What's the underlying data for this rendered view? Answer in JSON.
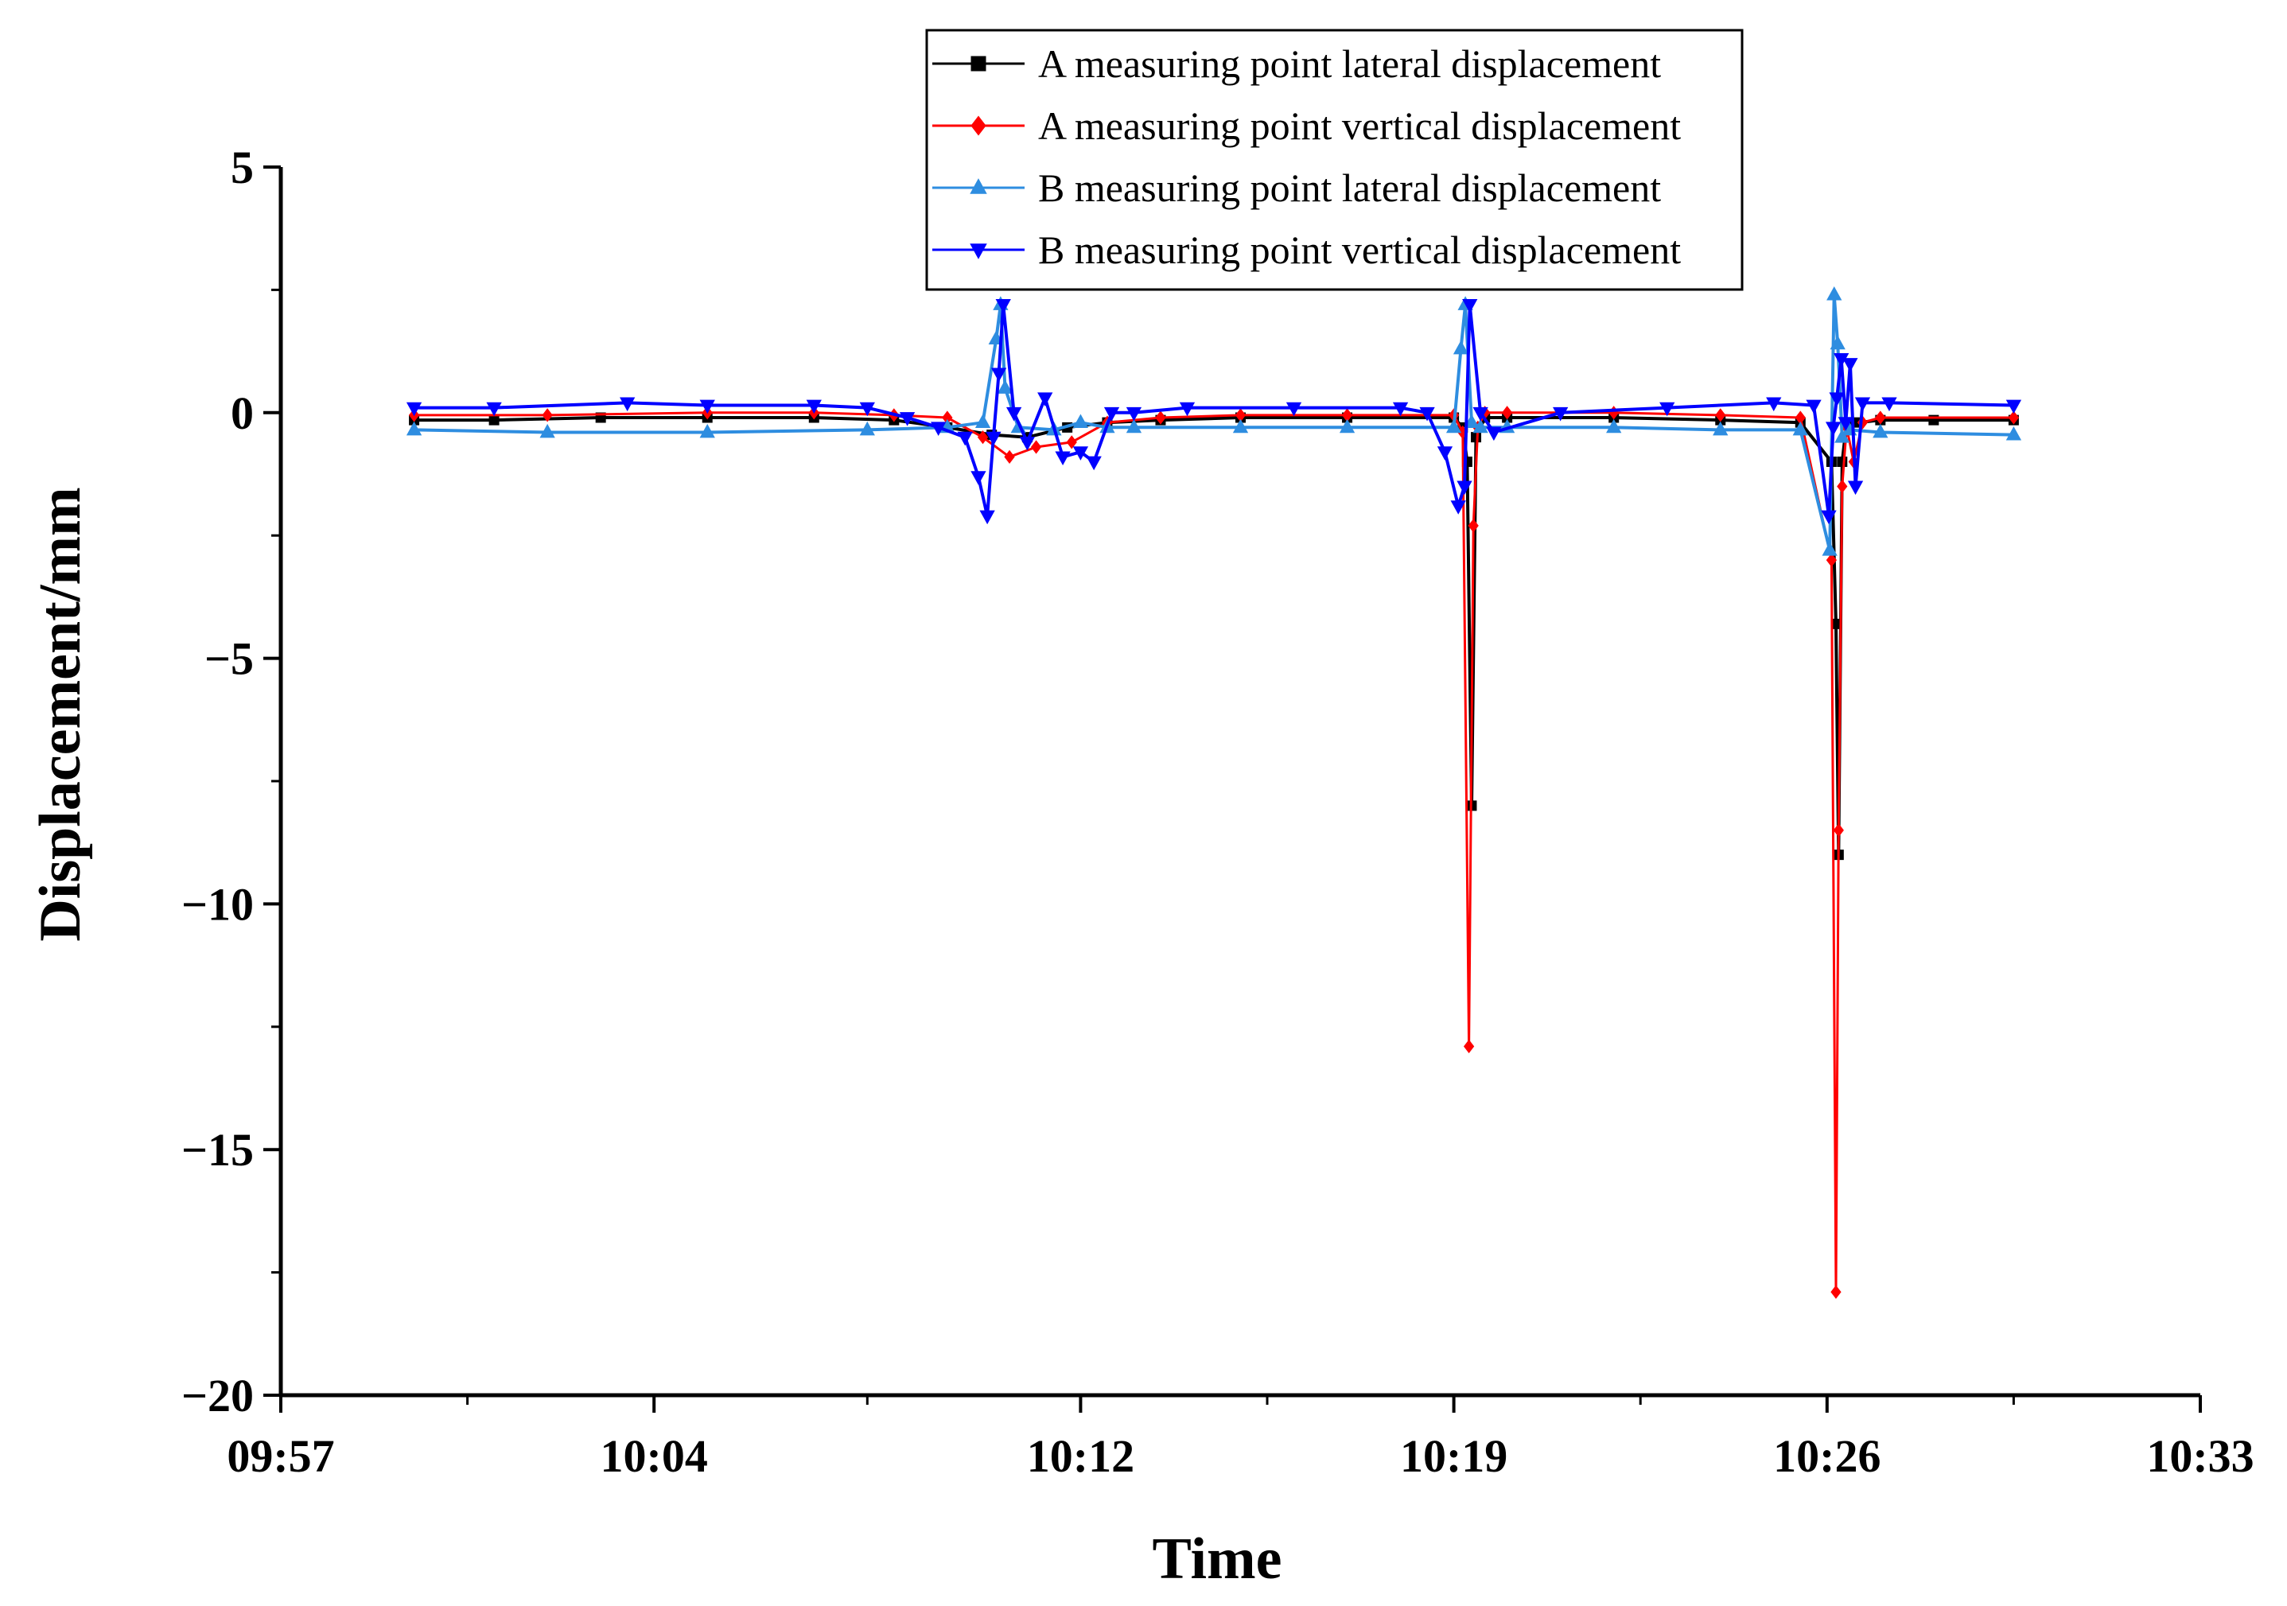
{
  "chart_data": {
    "type": "line",
    "title": "",
    "xlabel": "Time",
    "ylabel": "Displacement/mm",
    "xlim": [
      "09:57",
      "10:33"
    ],
    "ylim": [
      -20,
      5
    ],
    "x_ticks": [
      "09:57",
      "10:04",
      "10:12",
      "10:19",
      "10:26",
      "10:33"
    ],
    "y_ticks": [
      "5",
      "0",
      "−5",
      "−10",
      "−15",
      "−20"
    ],
    "y_tick_values": [
      5,
      0,
      -5,
      -10,
      -15,
      -20
    ],
    "grid": false,
    "legend_position": "top-right",
    "series": [
      {
        "name": "A measuring point lateral displacement",
        "color": "#000000",
        "marker": "square",
        "x": [
          "09:59:30",
          "10:01:00",
          "10:03:00",
          "10:05:00",
          "10:07:00",
          "10:08:30",
          "10:09:30",
          "10:10:20",
          "10:11:00",
          "10:11:45",
          "10:12:30",
          "10:13:30",
          "10:15:00",
          "10:17:00",
          "10:19:00",
          "10:19:10",
          "10:19:15",
          "10:19:20",
          "10:19:25",
          "10:19:35",
          "10:20:00",
          "10:22:00",
          "10:24:00",
          "10:25:30",
          "10:26:05",
          "10:26:10",
          "10:26:13",
          "10:26:17",
          "10:26:22",
          "10:26:35",
          "10:27:00",
          "10:28:00",
          "10:29:30"
        ],
        "y": [
          -0.15,
          -0.15,
          -0.1,
          -0.1,
          -0.1,
          -0.15,
          -0.3,
          -0.45,
          -0.5,
          -0.3,
          -0.2,
          -0.15,
          -0.1,
          -0.1,
          -0.1,
          -0.3,
          -1.0,
          -8.0,
          -0.5,
          -0.1,
          -0.1,
          -0.1,
          -0.15,
          -0.2,
          -1.0,
          -4.3,
          -9.0,
          -1.0,
          -0.2,
          -0.2,
          -0.15,
          -0.15,
          -0.15
        ]
      },
      {
        "name": "A measuring point vertical displacement",
        "color": "#ff0000",
        "marker": "diamond",
        "x": [
          "09:59:30",
          "10:02:00",
          "10:05:00",
          "10:07:00",
          "10:08:30",
          "10:09:30",
          "10:10:10",
          "10:10:40",
          "10:11:10",
          "10:11:50",
          "10:12:30",
          "10:13:30",
          "10:15:00",
          "10:17:00",
          "10:19:00",
          "10:19:10",
          "10:19:17",
          "10:19:22",
          "10:19:27",
          "10:19:35",
          "10:20:00",
          "10:22:00",
          "10:24:00",
          "10:25:30",
          "10:26:05",
          "10:26:10",
          "10:26:13",
          "10:26:17",
          "10:26:22",
          "10:26:30",
          "10:26:40",
          "10:27:00",
          "10:29:30"
        ],
        "y": [
          -0.05,
          -0.05,
          0.0,
          0.0,
          -0.05,
          -0.1,
          -0.5,
          -0.9,
          -0.7,
          -0.6,
          -0.2,
          -0.1,
          -0.05,
          -0.05,
          -0.05,
          -0.4,
          -12.9,
          -2.3,
          -0.3,
          0.0,
          0.0,
          0.0,
          -0.05,
          -0.1,
          -3.0,
          -17.9,
          -8.5,
          -1.5,
          -0.3,
          -1.0,
          -0.2,
          -0.1,
          -0.1
        ]
      },
      {
        "name": "B measuring point lateral displacement",
        "color": "#2e8de0",
        "marker": "triangle-up",
        "x": [
          "09:59:30",
          "10:02:00",
          "10:05:00",
          "10:08:00",
          "10:09:30",
          "10:10:10",
          "10:10:25",
          "10:10:30",
          "10:10:35",
          "10:10:50",
          "10:11:30",
          "10:12:00",
          "10:12:30",
          "10:13:00",
          "10:15:00",
          "10:17:00",
          "10:19:00",
          "10:19:08",
          "10:19:13",
          "10:19:20",
          "10:19:30",
          "10:20:00",
          "10:22:00",
          "10:24:00",
          "10:25:30",
          "10:26:03",
          "10:26:08",
          "10:26:12",
          "10:26:17",
          "10:26:25",
          "10:27:00",
          "10:29:30"
        ],
        "y": [
          -0.35,
          -0.4,
          -0.4,
          -0.35,
          -0.3,
          -0.2,
          1.5,
          2.2,
          0.5,
          -0.3,
          -0.35,
          -0.2,
          -0.3,
          -0.3,
          -0.3,
          -0.3,
          -0.3,
          1.3,
          2.2,
          -0.2,
          -0.3,
          -0.3,
          -0.3,
          -0.35,
          -0.35,
          -2.8,
          2.4,
          1.4,
          -0.5,
          -0.35,
          -0.4,
          -0.45
        ]
      },
      {
        "name": "B measuring point vertical displacement",
        "color": "#0000ff",
        "marker": "triangle-down",
        "x": [
          "09:59:30",
          "10:01:00",
          "10:03:30",
          "10:05:00",
          "10:07:00",
          "10:08:00",
          "10:08:45",
          "10:09:20",
          "10:09:50",
          "10:10:05",
          "10:10:15",
          "10:10:22",
          "10:10:28",
          "10:10:33",
          "10:10:45",
          "10:11:00",
          "10:11:20",
          "10:11:40",
          "10:12:00",
          "10:12:15",
          "10:12:35",
          "10:13:00",
          "10:14:00",
          "10:16:00",
          "10:18:00",
          "10:18:30",
          "10:18:50",
          "10:19:05",
          "10:19:12",
          "10:19:18",
          "10:19:30",
          "10:19:45",
          "10:21:00",
          "10:23:00",
          "10:25:00",
          "10:25:45",
          "10:26:02",
          "10:26:07",
          "10:26:11",
          "10:26:16",
          "10:26:21",
          "10:26:26",
          "10:26:32",
          "10:26:40",
          "10:27:10",
          "10:29:30"
        ],
        "y": [
          0.1,
          0.1,
          0.2,
          0.15,
          0.15,
          0.1,
          -0.1,
          -0.3,
          -0.5,
          -1.3,
          -2.1,
          -0.5,
          0.8,
          2.2,
          0.0,
          -0.6,
          0.3,
          -0.9,
          -0.8,
          -1.0,
          0.0,
          0.0,
          0.1,
          0.1,
          0.1,
          0.0,
          -0.8,
          -1.9,
          -1.5,
          2.2,
          0.0,
          -0.4,
          0.0,
          0.1,
          0.2,
          0.15,
          -2.1,
          -0.3,
          0.3,
          1.1,
          -0.2,
          1.0,
          -1.5,
          0.2,
          0.2,
          0.15
        ]
      }
    ]
  }
}
